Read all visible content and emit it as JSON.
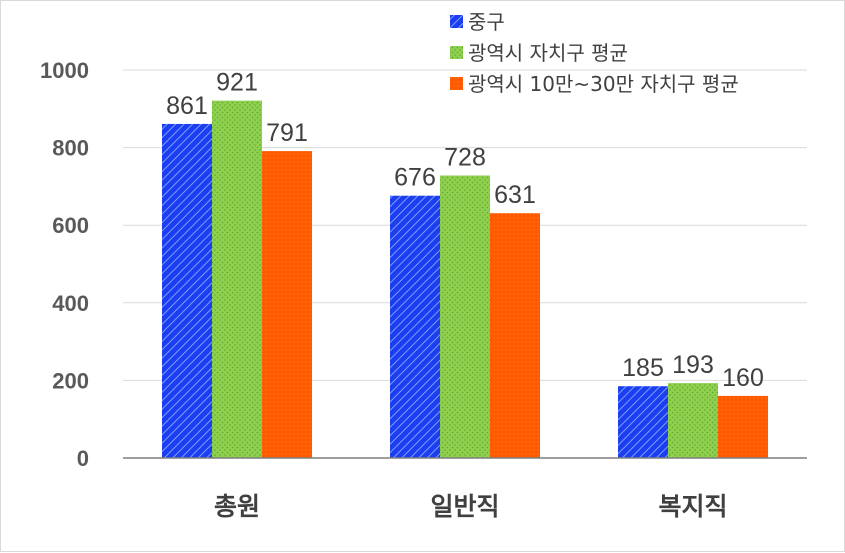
{
  "chart_data": {
    "type": "bar",
    "categories": [
      "총원",
      "일반직",
      "복지직"
    ],
    "series": [
      {
        "name": "중구",
        "values": [
          861,
          676,
          185
        ],
        "color": "#1a3ef0",
        "pattern": "diagonal-stripes"
      },
      {
        "name": "광역시 자치구 평균",
        "values": [
          921,
          728,
          193
        ],
        "color": "#8fd14f",
        "pattern": "dots"
      },
      {
        "name": "광역시 10만~30만 자치구 평균",
        "values": [
          791,
          631,
          160
        ],
        "color": "#ff5a00",
        "pattern": "fine-dots"
      }
    ],
    "ylim": [
      0,
      1000
    ],
    "yticks": [
      "0",
      "200",
      "400",
      "600",
      "800",
      "1000"
    ],
    "grid": true,
    "legend_position": "top-right",
    "title": "",
    "xlabel": "",
    "ylabel": ""
  }
}
